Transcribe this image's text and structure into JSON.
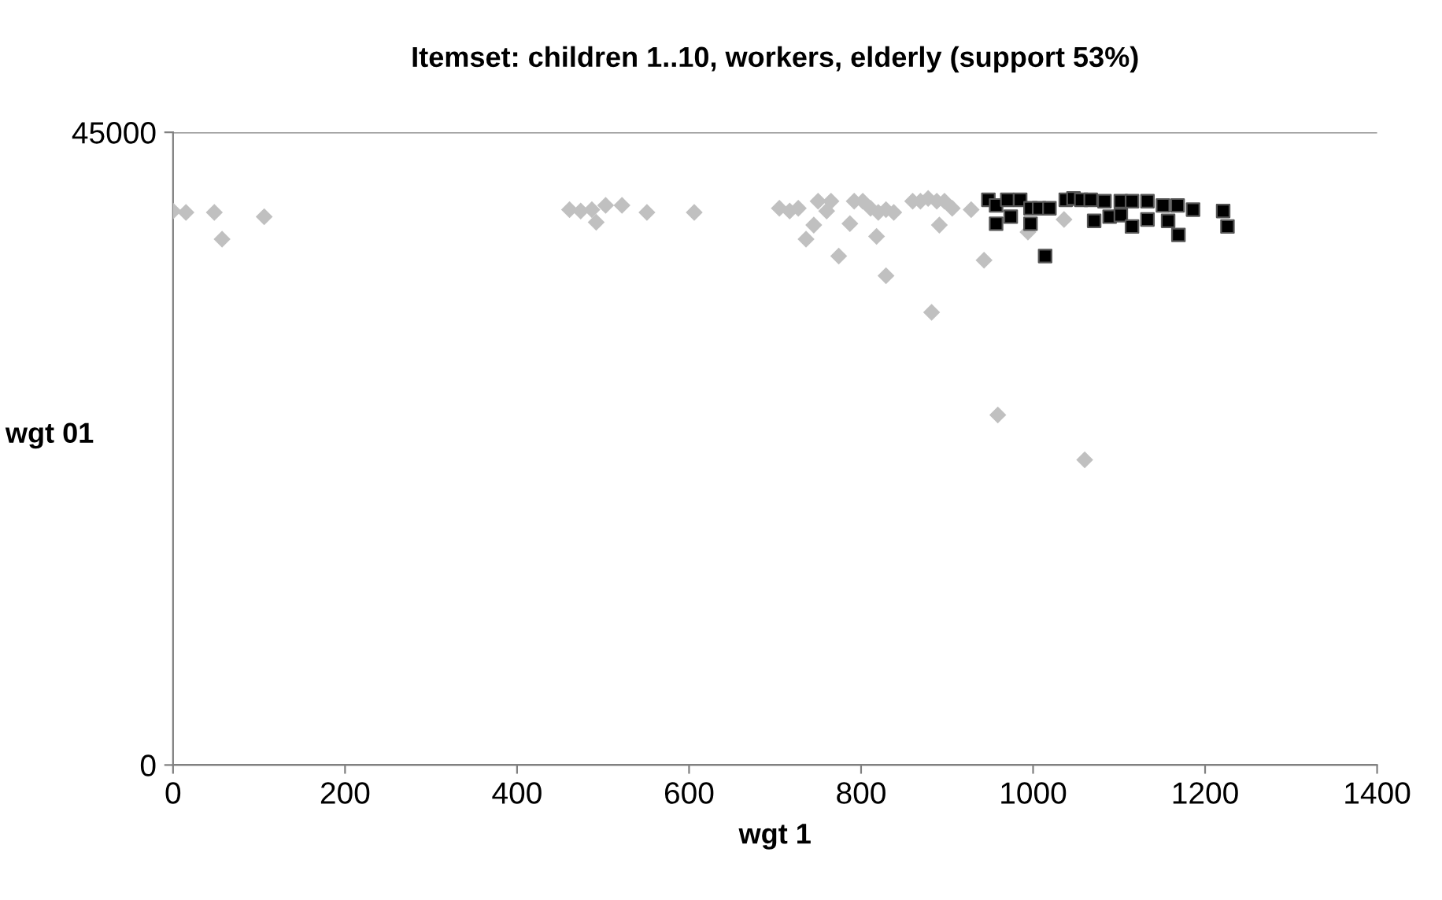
{
  "chart_data": {
    "type": "scatter",
    "title": "Itemset: children 1..10, workers, elderly (support 53%)",
    "xlabel": "wgt 1",
    "ylabel": "wgt 01",
    "xlim": [
      0,
      1400
    ],
    "xticks": [
      0,
      200,
      400,
      600,
      800,
      1000,
      1200,
      1400
    ],
    "ylim": [
      0,
      45000
    ],
    "yticks": [
      0,
      45000
    ],
    "grid": "y",
    "legend": false,
    "series": [
      {
        "color": "#c0c0c0",
        "marker": "diamond",
        "x": [
          0,
          15,
          48,
          57,
          106,
          461,
          474,
          487,
          492,
          503,
          522,
          551,
          606,
          705,
          717,
          727,
          736,
          745,
          750,
          760,
          765,
          774,
          787,
          792,
          802,
          811,
          818,
          820,
          829,
          829,
          838,
          860,
          869,
          878,
          882,
          888,
          891,
          897,
          906,
          928,
          943,
          959,
          994,
          1036,
          1060
        ],
        "values": [
          39400,
          39300,
          39300,
          37400,
          39000,
          39500,
          39400,
          39500,
          38600,
          39800,
          39800,
          39300,
          39300,
          39600,
          39400,
          39600,
          37400,
          38400,
          40100,
          39400,
          40100,
          36200,
          38500,
          40100,
          40100,
          39600,
          37600,
          39300,
          39500,
          34800,
          39300,
          40100,
          40100,
          40300,
          32200,
          40100,
          38400,
          40100,
          39600,
          39500,
          35900,
          24900,
          37900,
          38800,
          21700
        ]
      },
      {
        "color": "#000000",
        "marker": "square",
        "x": [
          948,
          957,
          957,
          970,
          974,
          985,
          997,
          997,
          1007,
          1014,
          1019,
          1038,
          1047,
          1056,
          1067,
          1071,
          1083,
          1089,
          1102,
          1102,
          1115,
          1115,
          1133,
          1133,
          1151,
          1157,
          1168,
          1169,
          1186,
          1221,
          1226
        ],
        "values": [
          40200,
          39800,
          38500,
          40200,
          39000,
          40200,
          39600,
          38500,
          39600,
          36200,
          39600,
          40200,
          40300,
          40200,
          40200,
          38700,
          40100,
          39000,
          40100,
          39100,
          40100,
          38300,
          40100,
          38800,
          39800,
          38700,
          39800,
          37700,
          39500,
          39400,
          38300
        ]
      }
    ]
  }
}
